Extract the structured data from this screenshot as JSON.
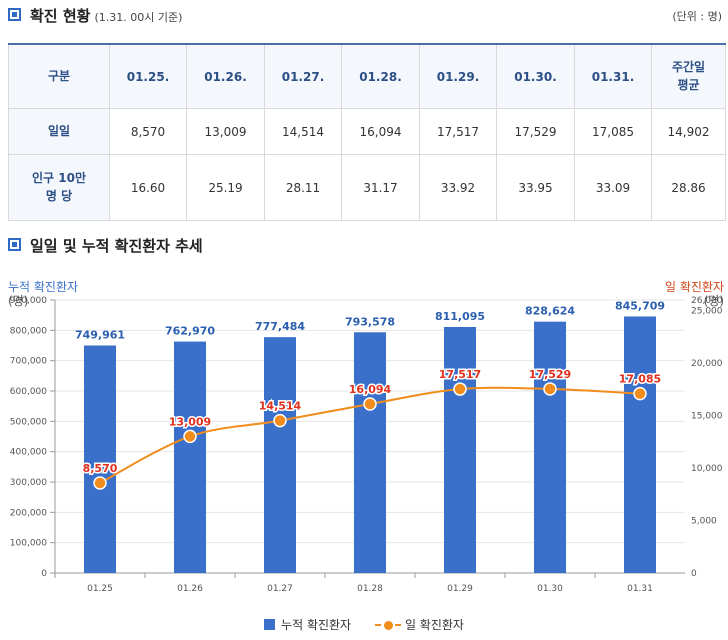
{
  "section1": {
    "title": "확진 현황",
    "note": "(1.31. 00시 기준)",
    "unit": "(단위 : 명)"
  },
  "table": {
    "header": [
      "구분",
      "01.25.",
      "01.26.",
      "01.27.",
      "01.28.",
      "01.29.",
      "01.30.",
      "01.31.",
      "주간일\n평균"
    ],
    "rows": [
      {
        "label": "일일",
        "values": [
          "8,570",
          "13,009",
          "14,514",
          "16,094",
          "17,517",
          "17,529",
          "17,085",
          "14,902"
        ]
      },
      {
        "label": "인구 10만\n명 당",
        "values": [
          "16.60",
          "25.19",
          "28.11",
          "31.17",
          "33.92",
          "33.95",
          "33.09",
          "28.86"
        ]
      }
    ]
  },
  "section2": {
    "title": "일일 및 누적 확진환자 추세"
  },
  "chart_data": {
    "type": "bar",
    "categories": [
      "01.25",
      "01.26",
      "01.27",
      "01.28",
      "01.29",
      "01.30",
      "01.31"
    ],
    "series": [
      {
        "name": "누적 확진환자",
        "type": "bar",
        "axis": "left",
        "values": [
          749961,
          762970,
          777484,
          793578,
          811095,
          828624,
          845709
        ],
        "labels": [
          "749,961",
          "762,970",
          "777,484",
          "793,578",
          "811,095",
          "828,624",
          "845,709"
        ],
        "color": "#3a70c9"
      },
      {
        "name": "일 확진환자",
        "type": "line",
        "axis": "right",
        "values": [
          8570,
          13009,
          14514,
          16094,
          17517,
          17529,
          17085
        ],
        "labels": [
          "8,570",
          "13,009",
          "14,514",
          "16,094",
          "17,517",
          "17,529",
          "17,085"
        ],
        "color": "#f28c1c"
      }
    ],
    "left_axis": {
      "label": "누적 확진환자",
      "unit": "(명)",
      "min": 0,
      "max": 900000,
      "ticks": [
        "0",
        "100,000",
        "200,000",
        "300,000",
        "400,000",
        "500,000",
        "600,000",
        "700,000",
        "800,000",
        "900,000"
      ],
      "color": "#3a70c9"
    },
    "right_axis": {
      "label": "일 확진환자",
      "unit": "(명)",
      "min": 0,
      "max": 26000,
      "ticks": [
        {
          "value": 0,
          "label": "0"
        },
        {
          "value": 5000,
          "label": "5,000"
        },
        {
          "value": 10000,
          "label": "10,000"
        },
        {
          "value": 15000,
          "label": "15,000"
        },
        {
          "value": 20000,
          "label": "20,000"
        },
        {
          "value": 25000,
          "label": "25,000"
        },
        {
          "value": 26000,
          "label": "26,000"
        }
      ],
      "color": "#d0451b"
    },
    "grid": true,
    "legend_position": "bottom"
  }
}
